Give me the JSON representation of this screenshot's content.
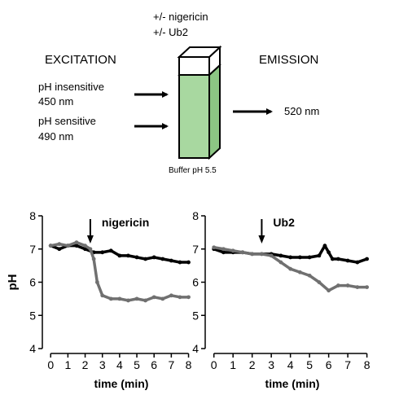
{
  "diagram": {
    "treatments": [
      "+/- nigericin",
      "+/- Ub2"
    ],
    "excitation_heading": "EXCITATION",
    "emission_heading": "EMISSION",
    "inputs": [
      {
        "label": "pH insensitive",
        "wavelength": "450 nm"
      },
      {
        "label": "pH sensitive",
        "wavelength": "490 nm"
      }
    ],
    "output_wavelength": "520 nm",
    "buffer_label": "Buffer pH 5.5",
    "cuvette_fill_color": "#a8d8a0"
  },
  "chart_data": [
    {
      "type": "line",
      "xlabel": "time (min)",
      "ylabel": "pH",
      "xlim": [
        -0.2,
        8.4
      ],
      "ylim": [
        4,
        8
      ],
      "xticks": [
        0,
        1,
        2,
        3,
        4,
        5,
        6,
        7,
        8
      ],
      "yticks": [
        4,
        5,
        6,
        7,
        8
      ],
      "annotation": {
        "text": "nigericin",
        "x": 2.3
      },
      "series": [
        {
          "color": "#000000",
          "x": [
            0,
            0.5,
            1,
            1.5,
            2,
            2.5,
            3,
            3.5,
            4,
            4.5,
            5,
            5.5,
            6,
            6.5,
            7,
            7.5,
            8
          ],
          "y": [
            7.1,
            7.0,
            7.1,
            7.1,
            7.0,
            6.9,
            6.9,
            6.95,
            6.8,
            6.8,
            6.75,
            6.7,
            6.75,
            6.7,
            6.65,
            6.6,
            6.6
          ]
        },
        {
          "color": "#707070",
          "x": [
            0,
            0.5,
            1,
            1.5,
            2,
            2.3,
            2.5,
            2.7,
            3,
            3.5,
            4,
            4.5,
            5,
            5.5,
            6,
            6.5,
            7,
            7.5,
            8
          ],
          "y": [
            7.1,
            7.15,
            7.1,
            7.2,
            7.1,
            7.0,
            6.7,
            6.0,
            5.6,
            5.5,
            5.5,
            5.45,
            5.5,
            5.45,
            5.55,
            5.5,
            5.6,
            5.55,
            5.55
          ]
        }
      ]
    },
    {
      "type": "line",
      "xlabel": "time (min)",
      "ylabel": "",
      "xlim": [
        -0.2,
        8.4
      ],
      "ylim": [
        4,
        8
      ],
      "xticks": [
        0,
        1,
        2,
        3,
        4,
        5,
        6,
        7,
        8
      ],
      "yticks": [
        4,
        5,
        6,
        7,
        8
      ],
      "annotation": {
        "text": "Ub2",
        "x": 2.5
      },
      "series": [
        {
          "color": "#000000",
          "x": [
            0,
            0.5,
            1,
            1.5,
            2,
            2.5,
            3,
            3.5,
            4,
            4.5,
            5,
            5.5,
            5.8,
            6,
            6.2,
            6.5,
            7,
            7.5,
            8
          ],
          "y": [
            7.0,
            6.9,
            6.9,
            6.9,
            6.85,
            6.85,
            6.85,
            6.8,
            6.75,
            6.75,
            6.75,
            6.8,
            7.1,
            6.9,
            6.7,
            6.7,
            6.65,
            6.6,
            6.7
          ]
        },
        {
          "color": "#707070",
          "x": [
            0,
            0.5,
            1,
            1.5,
            2,
            2.5,
            3,
            3.5,
            4,
            4.5,
            5,
            5.5,
            6,
            6.5,
            7,
            7.5,
            8
          ],
          "y": [
            7.05,
            7.0,
            6.95,
            6.9,
            6.85,
            6.85,
            6.8,
            6.6,
            6.4,
            6.3,
            6.2,
            6.0,
            5.75,
            5.9,
            5.9,
            5.85,
            5.85
          ]
        }
      ]
    }
  ]
}
